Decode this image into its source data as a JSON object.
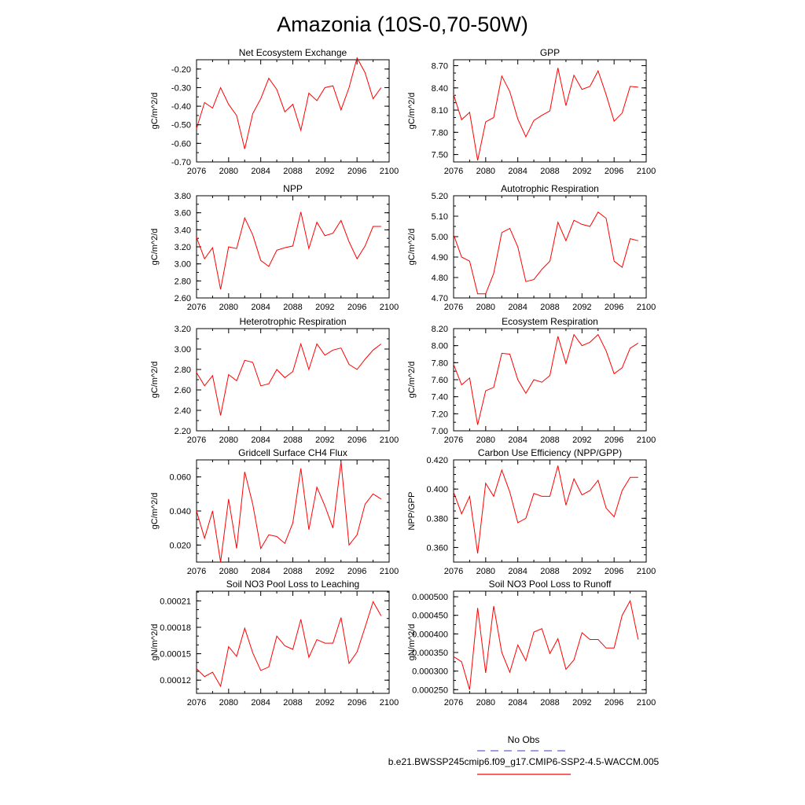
{
  "figure": {
    "title": "Amazonia (10S-0,70-50W)",
    "line_color": "#ff0000",
    "obs_color": "#6666cc"
  },
  "legend": {
    "obs_label": "No Obs",
    "model_label": "b.e21.BWSSP245cmip6.f09_g17.CMIP6-SSP2-4.5-WACCM.005"
  },
  "chart_data": [
    {
      "type": "line",
      "title": "Net Ecosystem Exchange",
      "ylabel": "gC/m^2/d",
      "xlim": [
        2076,
        2100
      ],
      "xticks": [
        2076,
        2080,
        2084,
        2088,
        2092,
        2096,
        2100
      ],
      "ylim": [
        -0.7,
        -0.15
      ],
      "yticks": [
        {
          "v": -0.2,
          "t": "-0.20"
        },
        {
          "v": -0.3,
          "t": "-0.30"
        },
        {
          "v": -0.4,
          "t": "-0.40"
        },
        {
          "v": -0.5,
          "t": "-0.50"
        },
        {
          "v": -0.6,
          "t": "-0.60"
        },
        {
          "v": -0.7,
          "t": "-0.70"
        }
      ],
      "yminor": 0.05,
      "x": [
        2076,
        2077,
        2078,
        2079,
        2080,
        2081,
        2082,
        2083,
        2084,
        2085,
        2086,
        2087,
        2088,
        2089,
        2090,
        2091,
        2092,
        2093,
        2094,
        2095,
        2096,
        2097,
        2098,
        2099
      ],
      "values": [
        -0.52,
        -0.38,
        -0.41,
        -0.3,
        -0.39,
        -0.45,
        -0.63,
        -0.44,
        -0.36,
        -0.25,
        -0.31,
        -0.43,
        -0.39,
        -0.53,
        -0.33,
        -0.37,
        -0.3,
        -0.29,
        -0.42,
        -0.3,
        -0.14,
        -0.22,
        -0.36,
        -0.3
      ]
    },
    {
      "type": "line",
      "title": "GPP",
      "ylabel": "gC/m^2/d",
      "xlim": [
        2076,
        2100
      ],
      "xticks": [
        2076,
        2080,
        2084,
        2088,
        2092,
        2096,
        2100
      ],
      "ylim": [
        7.4,
        8.78
      ],
      "yticks": [
        {
          "v": 7.5,
          "t": "7.50"
        },
        {
          "v": 7.8,
          "t": "7.80"
        },
        {
          "v": 8.1,
          "t": "8.10"
        },
        {
          "v": 8.4,
          "t": "8.40"
        },
        {
          "v": 8.7,
          "t": "8.70"
        }
      ],
      "yminor": 0.1,
      "x": [
        2076,
        2077,
        2078,
        2079,
        2080,
        2081,
        2082,
        2083,
        2084,
        2085,
        2086,
        2087,
        2088,
        2089,
        2090,
        2091,
        2092,
        2093,
        2094,
        2095,
        2096,
        2097,
        2098,
        2099
      ],
      "values": [
        8.31,
        7.97,
        8.07,
        7.42,
        7.94,
        8.0,
        8.56,
        8.35,
        7.98,
        7.74,
        7.96,
        8.03,
        8.09,
        8.67,
        8.16,
        8.57,
        8.38,
        8.42,
        8.63,
        8.31,
        7.95,
        8.06,
        8.42,
        8.41
      ]
    },
    {
      "type": "line",
      "title": "NPP",
      "ylabel": "gC/m^2/d",
      "xlim": [
        2076,
        2100
      ],
      "xticks": [
        2076,
        2080,
        2084,
        2088,
        2092,
        2096,
        2100
      ],
      "ylim": [
        2.6,
        3.8
      ],
      "yticks": [
        {
          "v": 2.6,
          "t": "2.60"
        },
        {
          "v": 2.8,
          "t": "2.80"
        },
        {
          "v": 3.0,
          "t": "3.00"
        },
        {
          "v": 3.2,
          "t": "3.20"
        },
        {
          "v": 3.4,
          "t": "3.40"
        },
        {
          "v": 3.6,
          "t": "3.60"
        },
        {
          "v": 3.8,
          "t": "3.80"
        }
      ],
      "yminor": 0.1,
      "x": [
        2076,
        2077,
        2078,
        2079,
        2080,
        2081,
        2082,
        2083,
        2084,
        2085,
        2086,
        2087,
        2088,
        2089,
        2090,
        2091,
        2092,
        2093,
        2094,
        2095,
        2096,
        2097,
        2098,
        2099
      ],
      "values": [
        3.31,
        3.06,
        3.19,
        2.7,
        3.2,
        3.18,
        3.54,
        3.34,
        3.04,
        2.97,
        3.16,
        3.19,
        3.21,
        3.61,
        3.18,
        3.49,
        3.33,
        3.36,
        3.51,
        3.26,
        3.06,
        3.21,
        3.44,
        3.44
      ]
    },
    {
      "type": "line",
      "title": "Autotrophic Respiration",
      "ylabel": "gC/m^2/d",
      "xlim": [
        2076,
        2100
      ],
      "xticks": [
        2076,
        2080,
        2084,
        2088,
        2092,
        2096,
        2100
      ],
      "ylim": [
        4.7,
        5.2
      ],
      "yticks": [
        {
          "v": 4.7,
          "t": "4.70"
        },
        {
          "v": 4.8,
          "t": "4.80"
        },
        {
          "v": 4.9,
          "t": "4.90"
        },
        {
          "v": 5.0,
          "t": "5.00"
        },
        {
          "v": 5.1,
          "t": "5.10"
        },
        {
          "v": 5.2,
          "t": "5.20"
        }
      ],
      "yminor": 0.05,
      "x": [
        2076,
        2077,
        2078,
        2079,
        2080,
        2081,
        2082,
        2083,
        2084,
        2085,
        2086,
        2087,
        2088,
        2089,
        2090,
        2091,
        2092,
        2093,
        2094,
        2095,
        2096,
        2097,
        2098,
        2099
      ],
      "values": [
        5.01,
        4.9,
        4.88,
        4.72,
        4.72,
        4.82,
        5.02,
        5.04,
        4.95,
        4.78,
        4.79,
        4.84,
        4.88,
        5.07,
        4.98,
        5.08,
        5.06,
        5.05,
        5.12,
        5.09,
        4.88,
        4.85,
        4.99,
        4.98
      ]
    },
    {
      "type": "line",
      "title": "Heterotrophic Respiration",
      "ylabel": "gC/m^2/d",
      "xlim": [
        2076,
        2100
      ],
      "xticks": [
        2076,
        2080,
        2084,
        2088,
        2092,
        2096,
        2100
      ],
      "ylim": [
        2.2,
        3.2
      ],
      "yticks": [
        {
          "v": 2.2,
          "t": "2.20"
        },
        {
          "v": 2.4,
          "t": "2.40"
        },
        {
          "v": 2.6,
          "t": "2.60"
        },
        {
          "v": 2.8,
          "t": "2.80"
        },
        {
          "v": 3.0,
          "t": "3.00"
        },
        {
          "v": 3.2,
          "t": "3.20"
        }
      ],
      "yminor": 0.1,
      "x": [
        2076,
        2077,
        2078,
        2079,
        2080,
        2081,
        2082,
        2083,
        2084,
        2085,
        2086,
        2087,
        2088,
        2089,
        2090,
        2091,
        2092,
        2093,
        2094,
        2095,
        2096,
        2097,
        2098,
        2099
      ],
      "values": [
        2.77,
        2.64,
        2.74,
        2.35,
        2.75,
        2.69,
        2.89,
        2.87,
        2.64,
        2.66,
        2.8,
        2.72,
        2.78,
        3.05,
        2.8,
        3.05,
        2.94,
        2.99,
        3.01,
        2.85,
        2.8,
        2.9,
        2.99,
        3.05
      ]
    },
    {
      "type": "line",
      "title": "Ecosystem Respiration",
      "ylabel": "gC/m^2/d",
      "xlim": [
        2076,
        2100
      ],
      "xticks": [
        2076,
        2080,
        2084,
        2088,
        2092,
        2096,
        2100
      ],
      "ylim": [
        7.0,
        8.2
      ],
      "yticks": [
        {
          "v": 7.0,
          "t": "7.00"
        },
        {
          "v": 7.2,
          "t": "7.20"
        },
        {
          "v": 7.4,
          "t": "7.40"
        },
        {
          "v": 7.6,
          "t": "7.60"
        },
        {
          "v": 7.8,
          "t": "7.80"
        },
        {
          "v": 8.0,
          "t": "8.00"
        },
        {
          "v": 8.2,
          "t": "8.20"
        }
      ],
      "yminor": 0.1,
      "x": [
        2076,
        2077,
        2078,
        2079,
        2080,
        2081,
        2082,
        2083,
        2084,
        2085,
        2086,
        2087,
        2088,
        2089,
        2090,
        2091,
        2092,
        2093,
        2094,
        2095,
        2096,
        2097,
        2098,
        2099
      ],
      "values": [
        7.78,
        7.54,
        7.62,
        7.07,
        7.47,
        7.51,
        7.91,
        7.9,
        7.6,
        7.44,
        7.6,
        7.57,
        7.65,
        8.11,
        7.79,
        8.13,
        8.0,
        8.04,
        8.13,
        7.94,
        7.67,
        7.74,
        7.97,
        8.03
      ]
    },
    {
      "type": "line",
      "title": "Gridcell Surface CH4 Flux",
      "ylabel": "gC/m^2/d",
      "xlim": [
        2076,
        2100
      ],
      "xticks": [
        2076,
        2080,
        2084,
        2088,
        2092,
        2096,
        2100
      ],
      "ylim": [
        0.01,
        0.07
      ],
      "yticks": [
        {
          "v": 0.02,
          "t": "0.020"
        },
        {
          "v": 0.04,
          "t": "0.040"
        },
        {
          "v": 0.06,
          "t": "0.060"
        }
      ],
      "yminor": 0.005,
      "x": [
        2076,
        2077,
        2078,
        2079,
        2080,
        2081,
        2082,
        2083,
        2084,
        2085,
        2086,
        2087,
        2088,
        2089,
        2090,
        2091,
        2092,
        2093,
        2094,
        2095,
        2096,
        2097,
        2098,
        2099
      ],
      "values": [
        0.04,
        0.024,
        0.04,
        0.01,
        0.047,
        0.018,
        0.063,
        0.044,
        0.018,
        0.026,
        0.025,
        0.021,
        0.033,
        0.065,
        0.029,
        0.054,
        0.043,
        0.03,
        0.069,
        0.02,
        0.026,
        0.044,
        0.05,
        0.047
      ]
    },
    {
      "type": "line",
      "title": "Carbon Use Efficiency (NPP/GPP)",
      "ylabel": "NPP/GPP",
      "xlim": [
        2076,
        2100
      ],
      "xticks": [
        2076,
        2080,
        2084,
        2088,
        2092,
        2096,
        2100
      ],
      "ylim": [
        0.35,
        0.42
      ],
      "yticks": [
        {
          "v": 0.36,
          "t": "0.360"
        },
        {
          "v": 0.38,
          "t": "0.380"
        },
        {
          "v": 0.4,
          "t": "0.400"
        },
        {
          "v": 0.42,
          "t": "0.420"
        }
      ],
      "yminor": 0.005,
      "x": [
        2076,
        2077,
        2078,
        2079,
        2080,
        2081,
        2082,
        2083,
        2084,
        2085,
        2086,
        2087,
        2088,
        2089,
        2090,
        2091,
        2092,
        2093,
        2094,
        2095,
        2096,
        2097,
        2098,
        2099
      ],
      "values": [
        0.398,
        0.383,
        0.395,
        0.356,
        0.404,
        0.395,
        0.413,
        0.398,
        0.377,
        0.38,
        0.397,
        0.395,
        0.395,
        0.416,
        0.389,
        0.407,
        0.396,
        0.399,
        0.406,
        0.387,
        0.381,
        0.399,
        0.408,
        0.408
      ]
    },
    {
      "type": "line",
      "title": "Soil NO3 Pool Loss to Leaching",
      "ylabel": "gN/m^2/d",
      "xlim": [
        2076,
        2100
      ],
      "xticks": [
        2076,
        2080,
        2084,
        2088,
        2092,
        2096,
        2100
      ],
      "ylim": [
        0.000105,
        0.000221
      ],
      "yticks": [
        {
          "v": 0.00012,
          "t": "0.00012"
        },
        {
          "v": 0.00015,
          "t": "0.00015"
        },
        {
          "v": 0.00018,
          "t": "0.00018"
        },
        {
          "v": 0.00021,
          "t": "0.00021"
        }
      ],
      "yminor": 1e-05,
      "x": [
        2076,
        2077,
        2078,
        2079,
        2080,
        2081,
        2082,
        2083,
        2084,
        2085,
        2086,
        2087,
        2088,
        2089,
        2090,
        2091,
        2092,
        2093,
        2094,
        2095,
        2096,
        2097,
        2098,
        2099
      ],
      "values": [
        0.000133,
        0.000124,
        0.000129,
        0.000113,
        0.000158,
        0.000147,
        0.000179,
        0.000151,
        0.000131,
        0.000135,
        0.00017,
        0.000159,
        0.000155,
        0.000189,
        0.000146,
        0.000166,
        0.000162,
        0.000162,
        0.000191,
        0.000139,
        0.000152,
        0.00018,
        0.000209,
        0.000193
      ]
    },
    {
      "type": "line",
      "title": "Soil NO3 Pool Loss to Runoff",
      "ylabel": "gN/m^2/d",
      "xlim": [
        2076,
        2100
      ],
      "xticks": [
        2076,
        2080,
        2084,
        2088,
        2092,
        2096,
        2100
      ],
      "ylim": [
        0.00024,
        0.000515
      ],
      "yticks": [
        {
          "v": 0.00025,
          "t": "0.000250"
        },
        {
          "v": 0.0003,
          "t": "0.000300"
        },
        {
          "v": 0.00035,
          "t": "0.000350"
        },
        {
          "v": 0.0004,
          "t": "0.000400"
        },
        {
          "v": 0.00045,
          "t": "0.000450"
        },
        {
          "v": 0.0005,
          "t": "0.000500"
        }
      ],
      "yminor": 2.5e-05,
      "x": [
        2076,
        2077,
        2078,
        2079,
        2080,
        2081,
        2082,
        2083,
        2084,
        2085,
        2086,
        2087,
        2088,
        2089,
        2090,
        2091,
        2092,
        2093,
        2094,
        2095,
        2096,
        2097,
        2098,
        2099
      ],
      "values": [
        0.000339,
        0.000325,
        0.00025,
        0.00047,
        0.000295,
        0.000475,
        0.00035,
        0.000297,
        0.00037,
        0.000328,
        0.000405,
        0.000414,
        0.000347,
        0.000387,
        0.000305,
        0.00033,
        0.000403,
        0.000385,
        0.000385,
        0.000362,
        0.000362,
        0.00045,
        0.000489,
        0.000385
      ]
    }
  ]
}
